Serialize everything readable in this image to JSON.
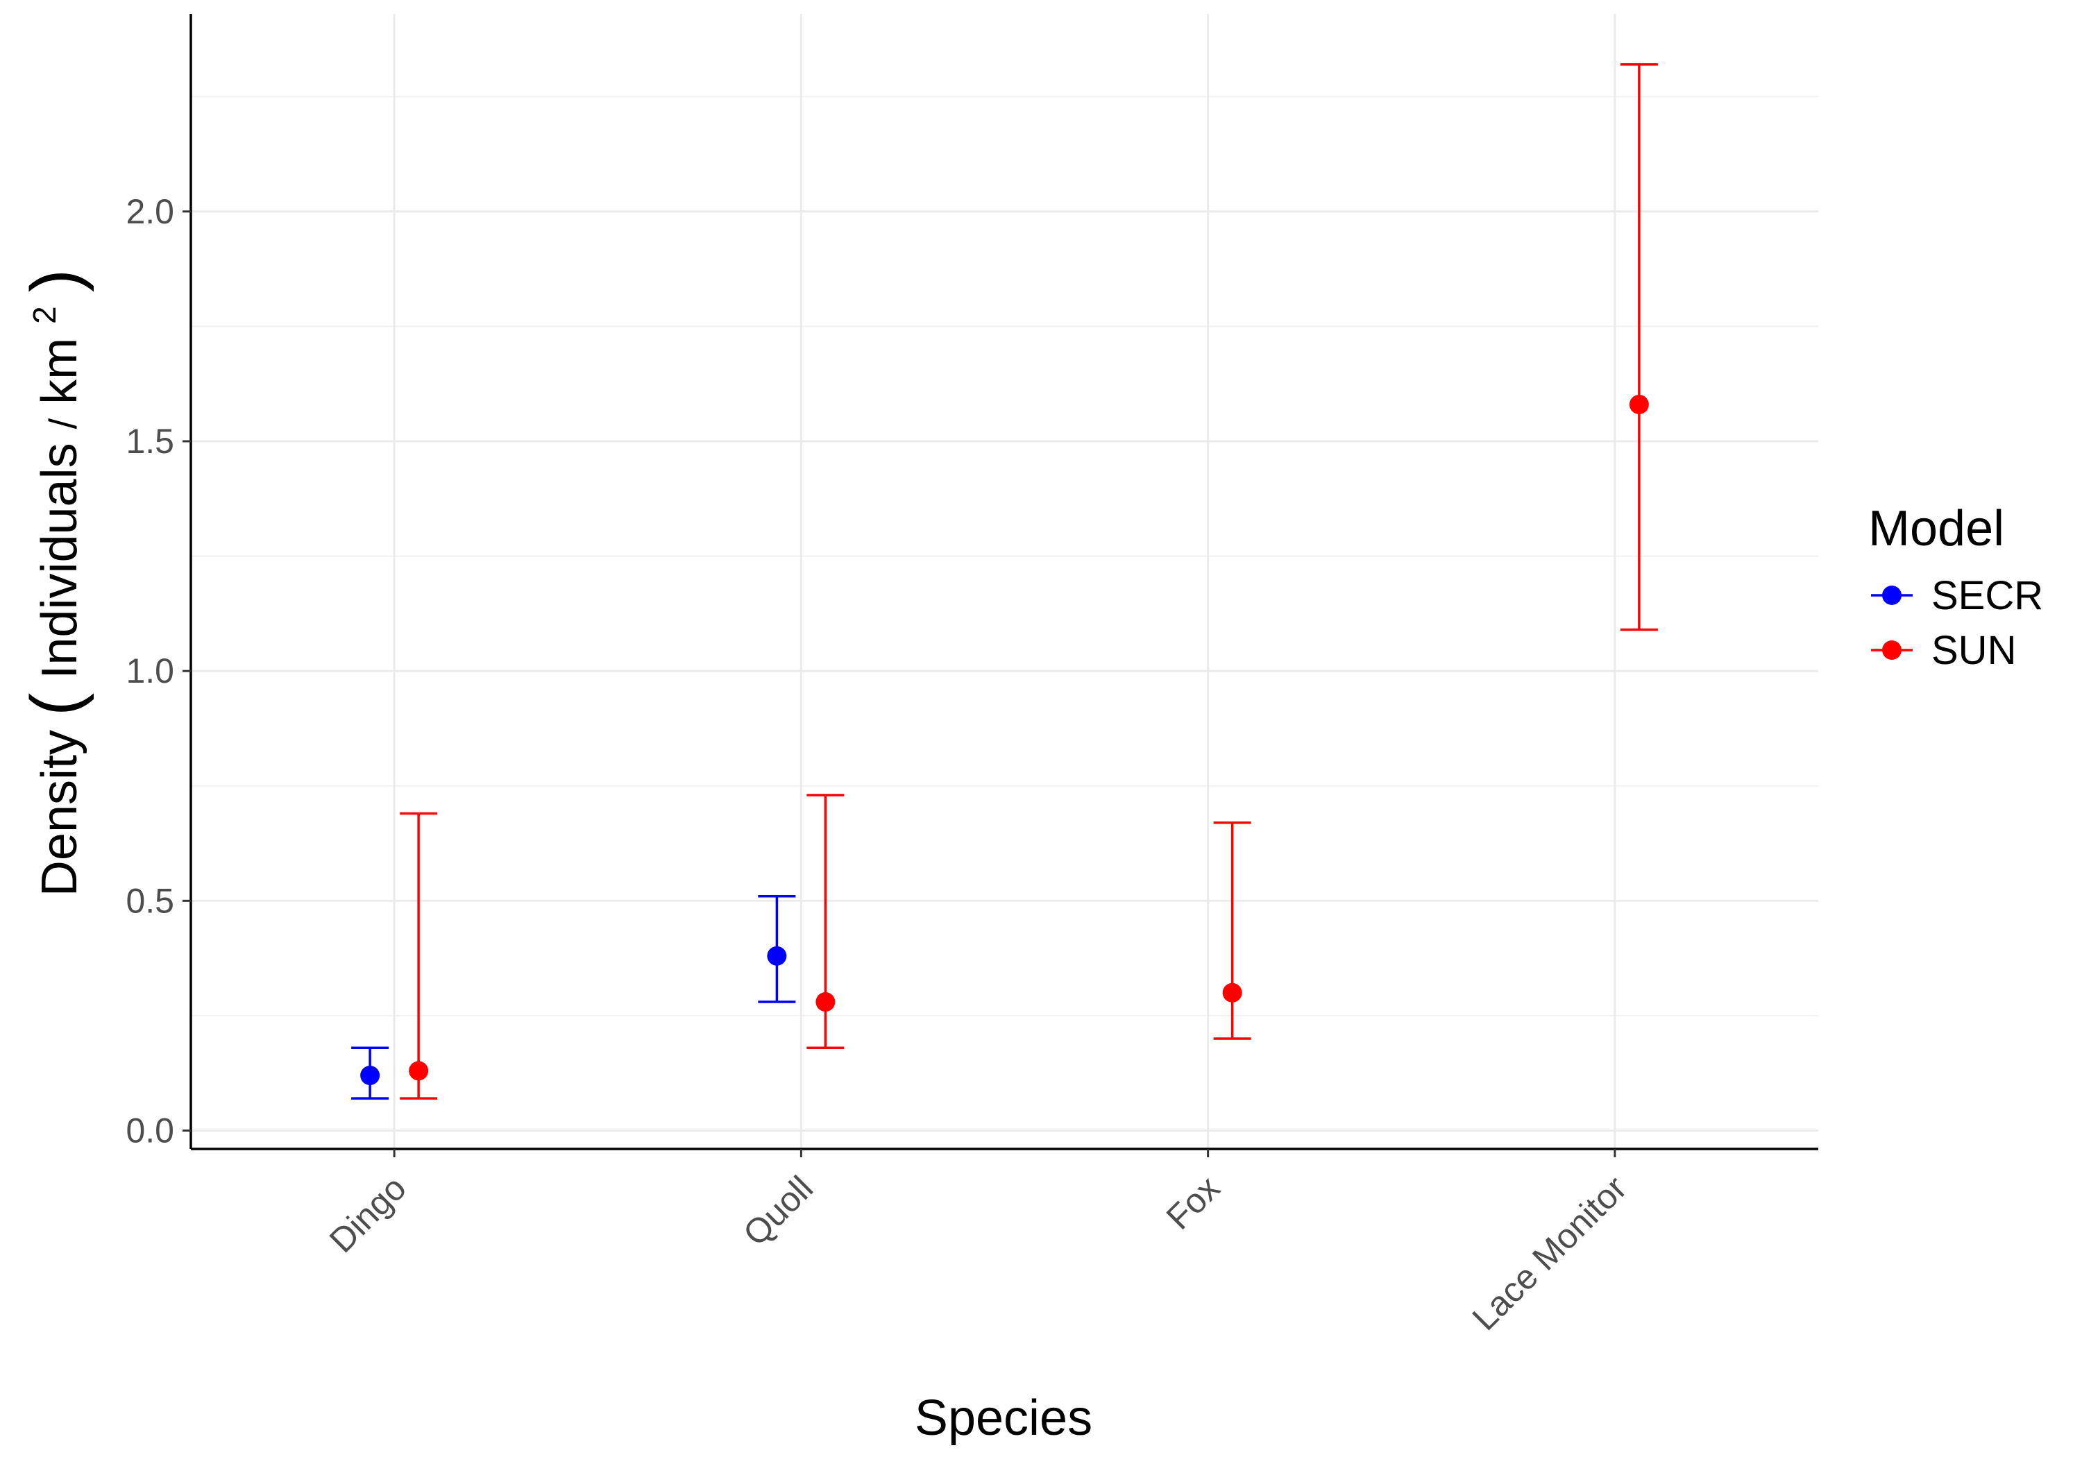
{
  "chart_data": {
    "type": "scatter",
    "subtype": "point-with-errorbars",
    "xlabel": "Species",
    "ylabel_parts": {
      "main": "Density",
      "unit_num": "Individuals",
      "unit_den": "km",
      "unit_exp": "2"
    },
    "categories": [
      "Dingo",
      "Quoll",
      "Fox",
      "Lace Monitor"
    ],
    "ylim": [
      -0.04,
      2.43
    ],
    "yticks": [
      0.0,
      0.5,
      1.0,
      1.5,
      2.0
    ],
    "ytick_labels": [
      "0.0",
      "0.5",
      "1.0",
      "1.5",
      "2.0"
    ],
    "grid": "major-and-minor",
    "legend": {
      "title": "Model",
      "position": "right",
      "entries": [
        "SECR",
        "SUN"
      ]
    },
    "series": [
      {
        "name": "SECR",
        "color": "#0000ff",
        "points": [
          {
            "category": "Dingo",
            "y": 0.12,
            "ymin": 0.07,
            "ymax": 0.18
          },
          {
            "category": "Quoll",
            "y": 0.38,
            "ymin": 0.28,
            "ymax": 0.51
          }
        ]
      },
      {
        "name": "SUN",
        "color": "#ff0000",
        "points": [
          {
            "category": "Dingo",
            "y": 0.13,
            "ymin": 0.07,
            "ymax": 0.69
          },
          {
            "category": "Quoll",
            "y": 0.28,
            "ymin": 0.18,
            "ymax": 0.73
          },
          {
            "category": "Fox",
            "y": 0.3,
            "ymin": 0.2,
            "ymax": 0.67
          },
          {
            "category": "Lace Monitor",
            "y": 1.58,
            "ymin": 1.09,
            "ymax": 2.32
          }
        ]
      }
    ]
  }
}
